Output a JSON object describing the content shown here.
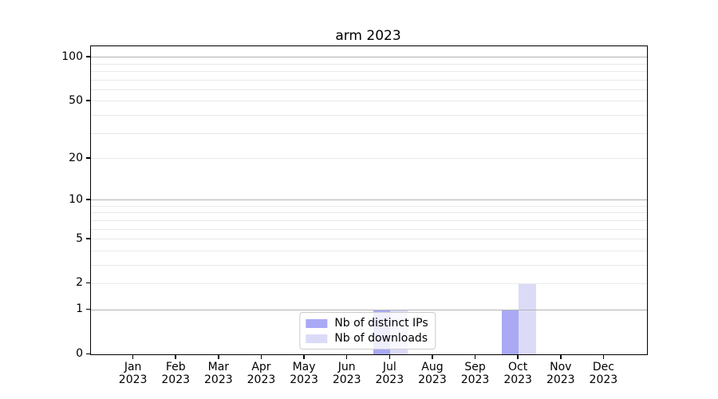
{
  "chart_data": {
    "type": "bar",
    "title": "arm 2023",
    "categories": [
      "Jan",
      "Feb",
      "Mar",
      "Apr",
      "May",
      "Jun",
      "Jul",
      "Aug",
      "Sep",
      "Oct",
      "Nov",
      "Dec"
    ],
    "x_year_label": "2023",
    "series": [
      {
        "name": "Nb of distinct IPs",
        "color": "#a9a9f5",
        "values": [
          0,
          0,
          0,
          0,
          0,
          0,
          1,
          0,
          0,
          1,
          0,
          0
        ]
      },
      {
        "name": "Nb of downloads",
        "color": "#dbdbf8",
        "values": [
          0,
          0,
          0,
          0,
          0,
          0,
          1,
          0,
          0,
          2,
          0,
          0
        ]
      }
    ],
    "y_scale": "log1p",
    "y_max": 119,
    "y_tick_labels": [
      100,
      50,
      20,
      10,
      5,
      2,
      1,
      0
    ],
    "y_major_gridlines": [
      1,
      10,
      100
    ],
    "y_minor_gridlines": [
      2,
      3,
      4,
      5,
      6,
      7,
      8,
      9,
      20,
      30,
      40,
      50,
      60,
      70,
      80,
      90
    ],
    "legend_position": "lower center",
    "grid": true,
    "colors": {
      "axis": "#000000",
      "major_grid": "#b2b2b2",
      "minor_grid": "#e9e9e9"
    }
  }
}
